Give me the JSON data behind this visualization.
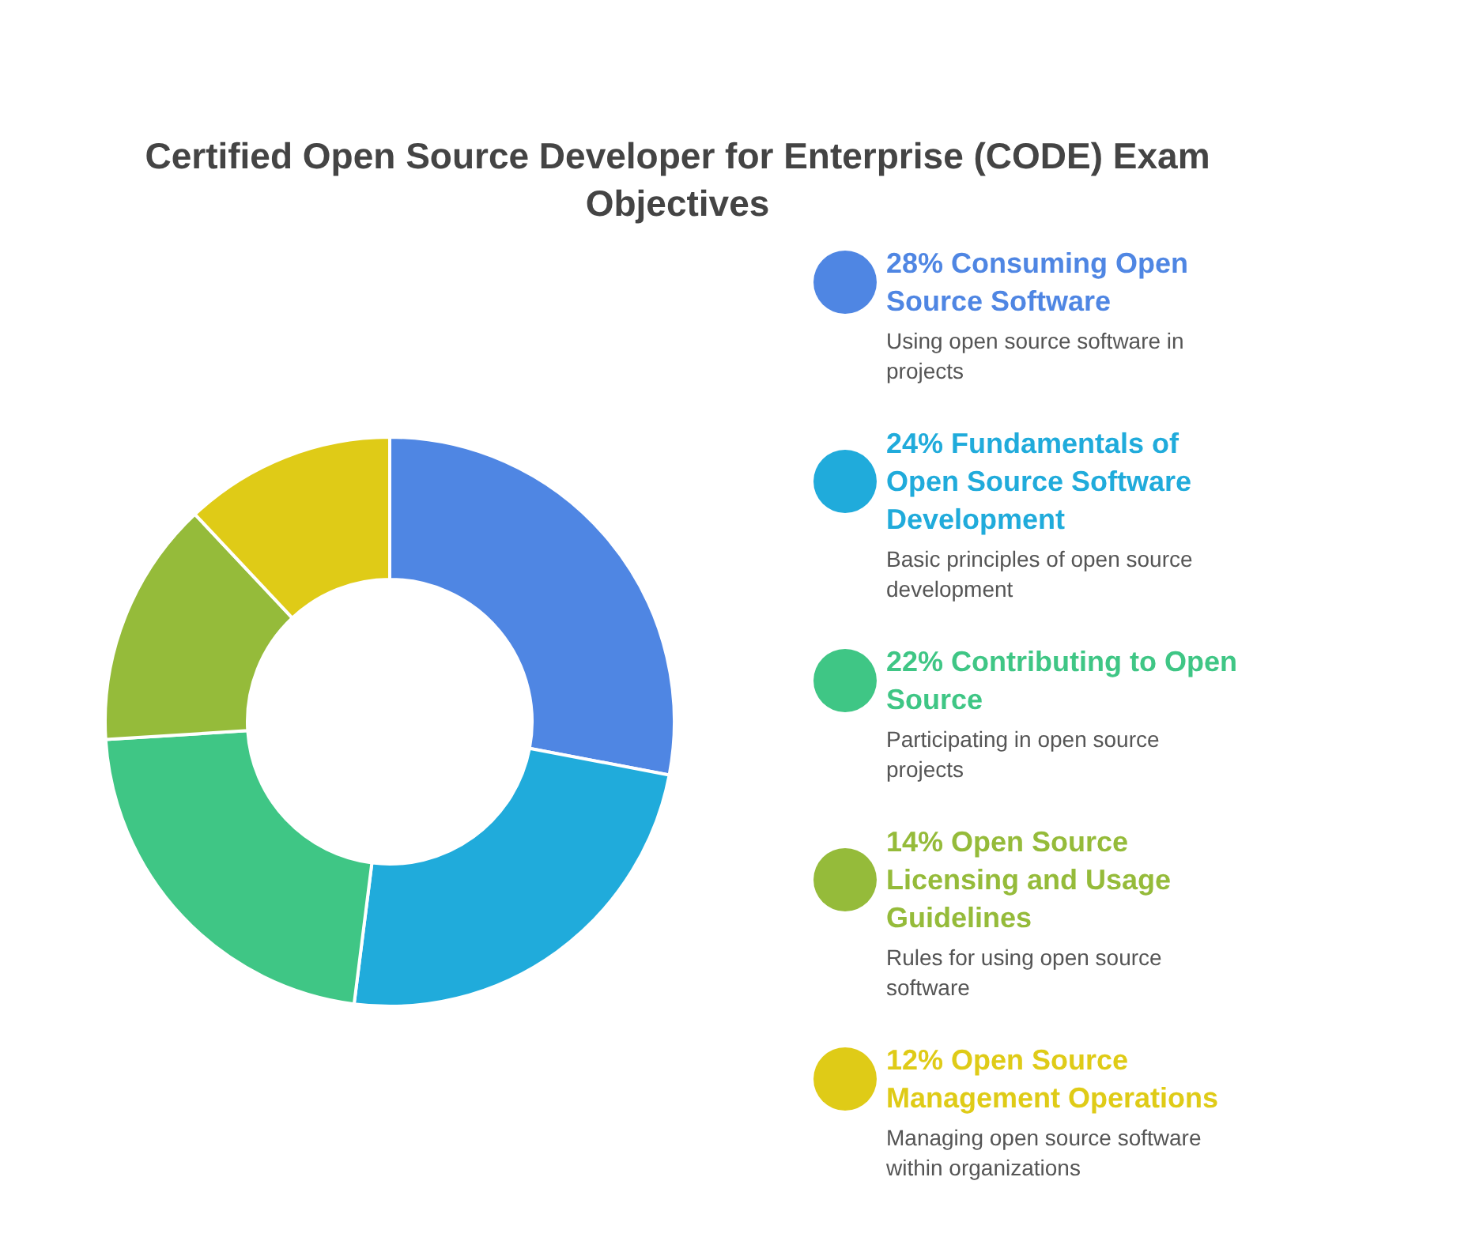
{
  "chart_data": {
    "type": "donut",
    "title": "Certified Open Source Developer for Enterprise (CODE) Exam Objectives",
    "categories": [
      "Consuming Open Source Software",
      "Fundamentals of Open Source Software Development",
      "Contributing to Open Source",
      "Open Source Licensing and Usage Guidelines",
      "Open Source Management Operations"
    ],
    "values": [
      28,
      24,
      22,
      14,
      12
    ],
    "colors": [
      "#4f86e3",
      "#20abdb",
      "#3fc685",
      "#95bb3a",
      "#dfcb17"
    ],
    "value_labels": [
      "28%",
      "24%",
      "22%",
      "14%",
      "12%"
    ],
    "annotations": [
      "Using open source software in projects",
      "Basic principles of open source development",
      "Participating in open source projects",
      "Rules for using open source software",
      "Managing open source software within organizations"
    ],
    "legend": "right"
  }
}
